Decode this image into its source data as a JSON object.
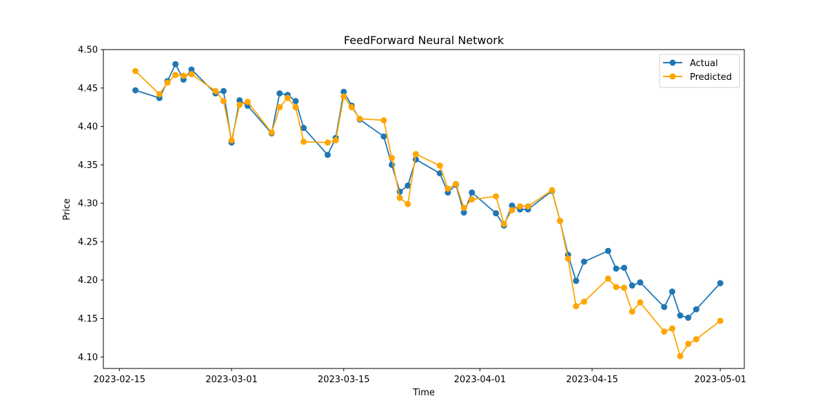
{
  "chart_data": {
    "type": "line",
    "title": "FeedForward Neural Network",
    "xlabel": "Time",
    "ylabel": "Price",
    "xlim": [
      "2023-02-13",
      "2023-05-04"
    ],
    "ylim": [
      4.085,
      4.5
    ],
    "x_ticks": [
      "2023-02-15",
      "2023-03-01",
      "2023-03-15",
      "2023-04-01",
      "2023-04-15",
      "2023-05-01"
    ],
    "y_ticks": [
      4.1,
      4.15,
      4.2,
      4.25,
      4.3,
      4.35,
      4.4,
      4.45,
      4.5
    ],
    "grid": false,
    "legend_position": "top-right",
    "x": [
      "2023-02-17",
      "2023-02-20",
      "2023-02-21",
      "2023-02-22",
      "2023-02-23",
      "2023-02-24",
      "2023-02-27",
      "2023-02-28",
      "2023-03-01",
      "2023-03-02",
      "2023-03-03",
      "2023-03-06",
      "2023-03-07",
      "2023-03-08",
      "2023-03-09",
      "2023-03-10",
      "2023-03-13",
      "2023-03-14",
      "2023-03-15",
      "2023-03-16",
      "2023-03-17",
      "2023-03-20",
      "2023-03-21",
      "2023-03-22",
      "2023-03-23",
      "2023-03-24",
      "2023-03-27",
      "2023-03-28",
      "2023-03-29",
      "2023-03-30",
      "2023-03-31",
      "2023-04-03",
      "2023-04-04",
      "2023-04-05",
      "2023-04-06",
      "2023-04-07",
      "2023-04-10",
      "2023-04-11",
      "2023-04-12",
      "2023-04-13",
      "2023-04-14",
      "2023-04-17",
      "2023-04-18",
      "2023-04-19",
      "2023-04-20",
      "2023-04-21",
      "2023-04-24",
      "2023-04-25",
      "2023-04-26",
      "2023-04-27",
      "2023-04-28",
      "2023-05-01"
    ],
    "series": [
      {
        "name": "Actual",
        "color": "#1f77b4",
        "values": [
          4.447,
          4.437,
          4.459,
          4.481,
          4.461,
          4.474,
          4.443,
          4.446,
          4.379,
          4.434,
          4.427,
          4.391,
          4.443,
          4.441,
          4.433,
          4.398,
          4.363,
          4.385,
          4.445,
          4.427,
          4.409,
          4.387,
          4.35,
          4.315,
          4.323,
          4.357,
          4.339,
          4.314,
          4.324,
          4.288,
          4.314,
          4.287,
          4.271,
          4.297,
          4.292,
          4.292,
          4.316,
          4.277,
          4.233,
          4.199,
          4.224,
          4.238,
          4.215,
          4.216,
          4.193,
          4.197,
          4.165,
          4.185,
          4.154,
          4.151,
          4.162,
          4.196
        ]
      },
      {
        "name": "Predicted",
        "color": "#ffa500",
        "values": [
          4.472,
          4.442,
          4.457,
          4.467,
          4.466,
          4.468,
          4.446,
          4.433,
          4.382,
          4.428,
          4.432,
          4.392,
          4.425,
          4.437,
          4.425,
          4.38,
          4.379,
          4.382,
          4.439,
          4.425,
          4.41,
          4.408,
          4.359,
          4.307,
          4.299,
          4.364,
          4.349,
          4.319,
          4.325,
          4.294,
          4.305,
          4.309,
          4.273,
          4.291,
          4.296,
          4.296,
          4.317,
          4.277,
          4.228,
          4.166,
          4.172,
          4.202,
          4.191,
          4.19,
          4.159,
          4.171,
          4.133,
          4.137,
          4.101,
          4.117,
          4.123,
          4.147
        ]
      }
    ]
  }
}
